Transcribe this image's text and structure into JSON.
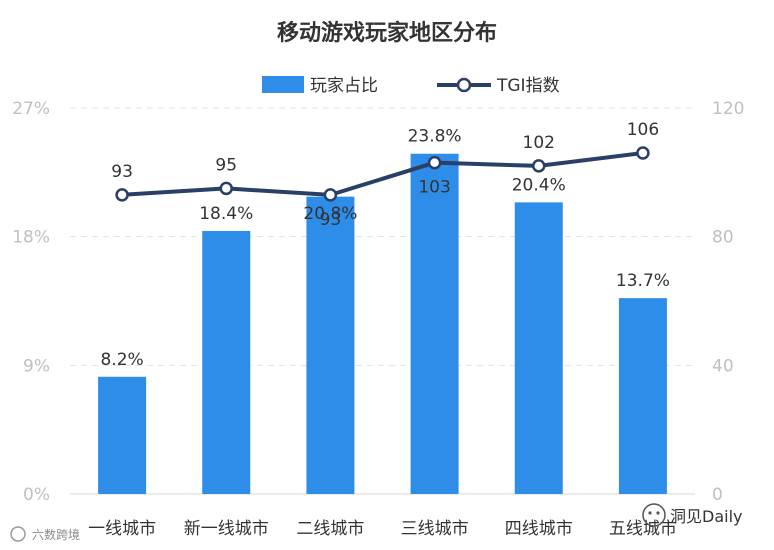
{
  "chart_data": {
    "type": "bar",
    "title": "移动游戏玩家地区分布",
    "categories": [
      "一线城市",
      "新一线城市",
      "二线城市",
      "三线城市",
      "四线城市",
      "五线城市"
    ],
    "series": [
      {
        "name": "玩家占比",
        "type": "bar",
        "axis": "left",
        "values": [
          8.2,
          18.4,
          20.8,
          23.8,
          20.4,
          13.7
        ],
        "labels": [
          "8.2%",
          "18.4%",
          "20.8%",
          "23.8%",
          "20.4%",
          "13.7%"
        ],
        "color": "#2e8de8"
      },
      {
        "name": "TGI指数",
        "type": "line",
        "axis": "right",
        "values": [
          93,
          95,
          93,
          103,
          102,
          106
        ],
        "labels": [
          "93",
          "95",
          "93",
          "103",
          "102",
          "106"
        ],
        "color": "#2a3f66"
      }
    ],
    "y_left": {
      "min": 0,
      "max": 27,
      "ticks": [
        0,
        9,
        18,
        27
      ],
      "tick_labels": [
        "0%",
        "9%",
        "18%",
        "27%"
      ]
    },
    "y_right": {
      "min": 0,
      "max": 120,
      "ticks": [
        0,
        40,
        80,
        120
      ],
      "tick_labels": [
        "0",
        "40",
        "80",
        "120"
      ]
    },
    "grid": true,
    "legend": "top-center"
  },
  "watermarks": {
    "left": "六数跨境",
    "right": "洞见Daily"
  }
}
